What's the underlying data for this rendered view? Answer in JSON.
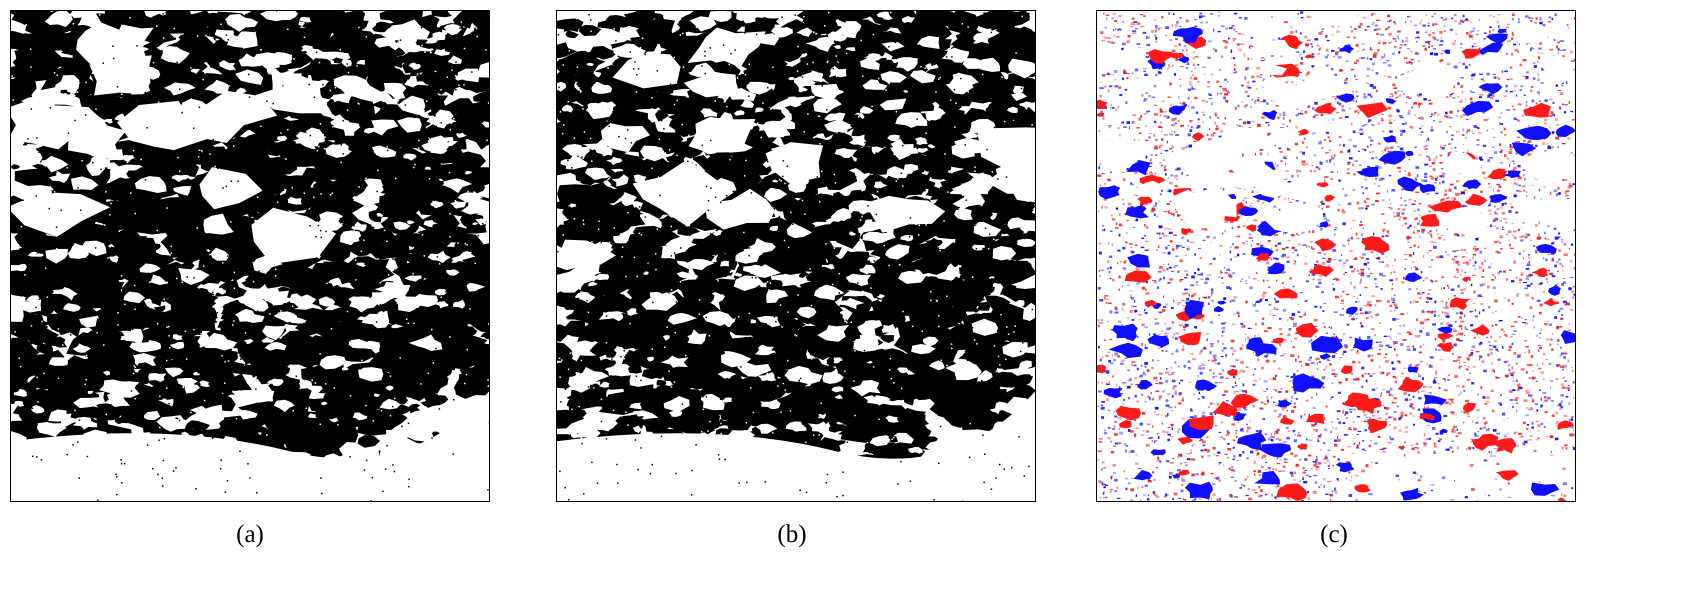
{
  "panels": [
    {
      "id": "a",
      "caption": "(a)",
      "kind": "binary-map",
      "fg_color": "#000000",
      "bg_color": "#ffffff"
    },
    {
      "id": "b",
      "caption": "(b)",
      "kind": "binary-map",
      "fg_color": "#000000",
      "bg_color": "#ffffff"
    },
    {
      "id": "c",
      "caption": "(c)",
      "kind": "difference-map",
      "colors": {
        "positive": "#ff1a1a",
        "negative": "#1010ff",
        "neutral": "#ffffff"
      }
    }
  ]
}
